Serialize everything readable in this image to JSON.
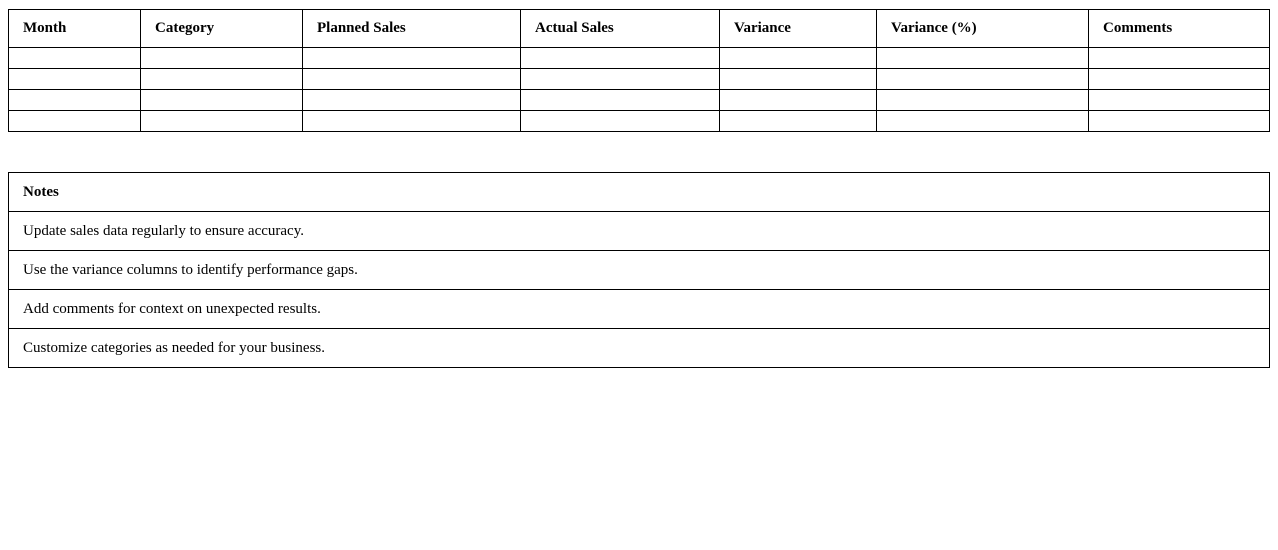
{
  "sales_table": {
    "headers": [
      "Month",
      "Category",
      "Planned Sales",
      "Actual Sales",
      "Variance",
      "Variance (%)",
      "Comments"
    ],
    "empty_rows": 4
  },
  "notes": {
    "title": "Notes",
    "items": [
      "Update sales data regularly to ensure accuracy.",
      "Use the variance columns to identify performance gaps.",
      "Add comments for context on unexpected results.",
      "Customize categories as needed for your business."
    ]
  }
}
